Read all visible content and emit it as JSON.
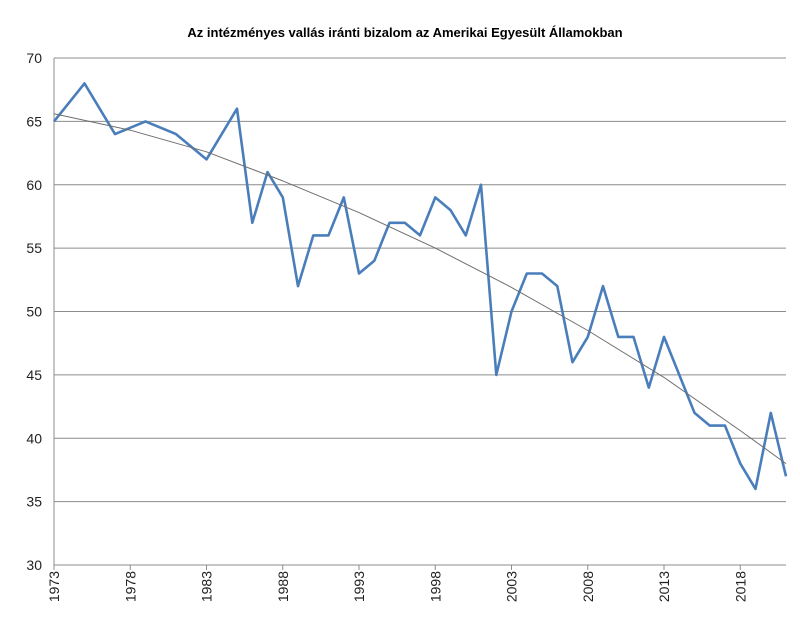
{
  "chart_data": {
    "type": "line",
    "title": "Az intézményes vallás iránti bizalom az Amerikai Egyesült Államokban",
    "xlabel": "",
    "ylabel": "",
    "xlim": [
      1973,
      2021
    ],
    "ylim": [
      30,
      70
    ],
    "y_ticks": [
      30,
      35,
      40,
      45,
      50,
      55,
      60,
      65,
      70
    ],
    "x_ticks": [
      1973,
      1978,
      1983,
      1988,
      1993,
      1998,
      2003,
      2008,
      2013,
      2018
    ],
    "x_tick_labels": [
      "1973",
      "1978",
      "1983",
      "1988",
      "1993",
      "1998",
      "2003",
      "2008",
      "2013",
      "2018"
    ],
    "grid": true,
    "legend": "none",
    "series": [
      {
        "color": "#4a7ebb",
        "x": [
          1973,
          1975,
          1977,
          1979,
          1981,
          1983,
          1985,
          1986,
          1987,
          1988,
          1989,
          1990,
          1991,
          1992,
          1993,
          1994,
          1995,
          1996,
          1997,
          1998,
          1999,
          2000,
          2001,
          2002,
          2003,
          2004,
          2005,
          2006,
          2007,
          2008,
          2009,
          2010,
          2011,
          2012,
          2013,
          2014,
          2015,
          2016,
          2017,
          2018,
          2019,
          2020,
          2021
        ],
        "values": [
          65,
          68,
          64,
          65,
          64,
          62,
          66,
          57,
          61,
          59,
          52,
          56,
          56,
          59,
          53,
          54,
          57,
          57,
          56,
          59,
          58,
          56,
          60,
          45,
          50,
          53,
          53,
          52,
          46,
          48,
          52,
          48,
          48,
          44,
          48,
          45,
          42,
          41,
          41,
          38,
          36,
          42,
          37
        ]
      },
      {
        "color": "#6e6e6e",
        "x": [
          1973,
          1978,
          1983,
          1988,
          1993,
          1998,
          2003,
          2008,
          2013,
          2018,
          2021
        ],
        "values": [
          65.6,
          64.3,
          62.6,
          60.3,
          57.8,
          55.0,
          51.9,
          48.5,
          44.8,
          40.6,
          38.0
        ]
      }
    ]
  }
}
